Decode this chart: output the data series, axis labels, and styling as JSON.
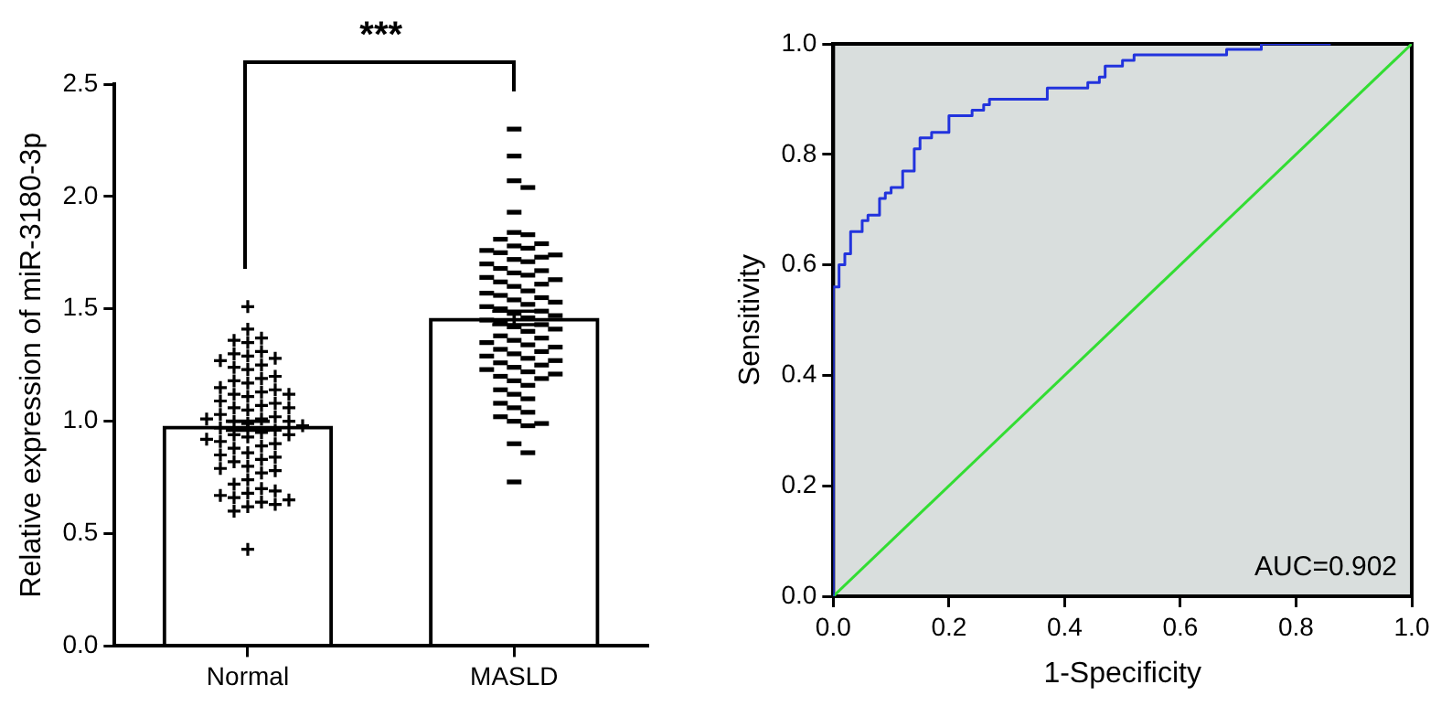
{
  "chart_data": [
    {
      "type": "bar",
      "ylabel": "Relative expression of miR-3180-3p",
      "categories": [
        "Normal",
        "MASLD"
      ],
      "ylim": [
        0,
        2.5
      ],
      "yticks": [
        {
          "value": 0,
          "label": "0.0"
        },
        {
          "value": 0.5,
          "label": "0.5"
        },
        {
          "value": 1,
          "label": "1.0"
        },
        {
          "value": 1.5,
          "label": "1.5"
        },
        {
          "value": 2,
          "label": "2.0"
        },
        {
          "value": 2.5,
          "label": "2.5"
        }
      ],
      "grid": false,
      "legend": false,
      "annotations": [
        "***"
      ],
      "series": [
        {
          "type": "bar",
          "color": "#000000",
          "values": [
            0.98,
            1.46
          ],
          "errors": [
            0.02,
            0.03
          ]
        },
        {
          "type": "scatter",
          "color": "#000000",
          "marker": "cross",
          "x": [
            "Normal",
            "Normal",
            "Normal",
            "Normal",
            "Normal",
            "Normal",
            "Normal",
            "Normal",
            "Normal",
            "Normal",
            "Normal",
            "Normal",
            "Normal",
            "Normal",
            "Normal",
            "Normal",
            "Normal",
            "Normal",
            "Normal",
            "Normal",
            "Normal",
            "Normal",
            "Normal",
            "Normal",
            "Normal",
            "Normal",
            "Normal",
            "Normal",
            "Normal",
            "Normal",
            "Normal",
            "Normal",
            "Normal",
            "Normal",
            "Normal",
            "Normal",
            "Normal",
            "Normal",
            "Normal",
            "Normal",
            "Normal",
            "Normal",
            "Normal",
            "Normal",
            "Normal",
            "Normal",
            "Normal",
            "Normal",
            "Normal",
            "Normal",
            "Normal",
            "Normal",
            "Normal",
            "Normal",
            "Normal",
            "Normal",
            "Normal",
            "Normal",
            "Normal",
            "Normal",
            "Normal",
            "Normal",
            "Normal",
            "Normal",
            "Normal",
            "Normal",
            "Normal",
            "Normal",
            "Normal",
            "Normal"
          ],
          "values": [
            1.51,
            1.41,
            1.37,
            1.36,
            1.35,
            1.31,
            1.3,
            1.29,
            1.28,
            1.27,
            1.25,
            1.24,
            1.23,
            1.2,
            1.19,
            1.18,
            1.17,
            1.15,
            1.14,
            1.13,
            1.12,
            1.12,
            1.11,
            1.09,
            1.08,
            1.07,
            1.06,
            1.06,
            1.05,
            1.03,
            1.02,
            1.01,
            1.01,
            1.0,
            1.0,
            0.99,
            0.98,
            0.97,
            0.96,
            0.95,
            0.94,
            0.94,
            0.93,
            0.92,
            0.91,
            0.9,
            0.89,
            0.88,
            0.86,
            0.85,
            0.84,
            0.83,
            0.82,
            0.8,
            0.79,
            0.78,
            0.77,
            0.74,
            0.72,
            0.7,
            0.69,
            0.68,
            0.67,
            0.66,
            0.65,
            0.64,
            0.63,
            0.62,
            0.6,
            0.43
          ]
        },
        {
          "type": "scatter",
          "color": "#000000",
          "x": [
            "MASLD",
            "MASLD",
            "MASLD",
            "MASLD",
            "MASLD",
            "MASLD",
            "MASLD",
            "MASLD",
            "MASLD",
            "MASLD",
            "MASLD",
            "MASLD",
            "MASLD",
            "MASLD",
            "MASLD",
            "MASLD",
            "MASLD",
            "MASLD",
            "MASLD",
            "MASLD",
            "MASLD",
            "MASLD",
            "MASLD",
            "MASLD",
            "MASLD",
            "MASLD",
            "MASLD",
            "MASLD",
            "MASLD",
            "MASLD",
            "MASLD",
            "MASLD",
            "MASLD",
            "MASLD",
            "MASLD",
            "MASLD",
            "MASLD",
            "MASLD",
            "MASLD",
            "MASLD",
            "MASLD",
            "MASLD",
            "MASLD",
            "MASLD",
            "MASLD",
            "MASLD",
            "MASLD",
            "MASLD",
            "MASLD",
            "MASLD",
            "MASLD",
            "MASLD",
            "MASLD",
            "MASLD",
            "MASLD",
            "MASLD",
            "MASLD",
            "MASLD",
            "MASLD",
            "MASLD",
            "MASLD",
            "MASLD",
            "MASLD",
            "MASLD",
            "MASLD",
            "MASLD",
            "MASLD",
            "MASLD",
            "MASLD",
            "MASLD",
            "MASLD",
            "MASLD",
            "MASLD",
            "MASLD",
            "MASLD",
            "MASLD",
            "MASLD",
            "MASLD",
            "MASLD",
            "MASLD",
            "MASLD"
          ],
          "values": [
            2.3,
            2.18,
            2.07,
            2.04,
            1.93,
            1.84,
            1.83,
            1.81,
            1.79,
            1.78,
            1.77,
            1.76,
            1.75,
            1.74,
            1.73,
            1.72,
            1.71,
            1.7,
            1.68,
            1.67,
            1.66,
            1.65,
            1.64,
            1.63,
            1.62,
            1.61,
            1.6,
            1.58,
            1.57,
            1.56,
            1.55,
            1.54,
            1.53,
            1.52,
            1.51,
            1.5,
            1.49,
            1.48,
            1.47,
            1.46,
            1.45,
            1.44,
            1.43,
            1.42,
            1.41,
            1.4,
            1.38,
            1.37,
            1.36,
            1.35,
            1.34,
            1.33,
            1.32,
            1.31,
            1.3,
            1.29,
            1.28,
            1.27,
            1.26,
            1.25,
            1.24,
            1.23,
            1.22,
            1.21,
            1.2,
            1.19,
            1.18,
            1.16,
            1.14,
            1.12,
            1.1,
            1.08,
            1.06,
            1.04,
            1.02,
            1.0,
            0.99,
            0.98,
            0.9,
            0.86,
            0.73
          ]
        }
      ]
    },
    {
      "type": "step",
      "xlabel": "1-Specificity",
      "ylabel": "Sensitivity",
      "xlim": [
        0,
        1
      ],
      "ylim": [
        0,
        1
      ],
      "xticks": [
        {
          "value": 0,
          "label": "0.0"
        },
        {
          "value": 0.2,
          "label": "0.2"
        },
        {
          "value": 0.4,
          "label": "0.4"
        },
        {
          "value": 0.6,
          "label": "0.6"
        },
        {
          "value": 0.8,
          "label": "0.8"
        },
        {
          "value": 1,
          "label": "1.0"
        }
      ],
      "yticks": [
        {
          "value": 0,
          "label": "0.0"
        },
        {
          "value": 0.2,
          "label": "0.2"
        },
        {
          "value": 0.4,
          "label": "0.4"
        },
        {
          "value": 0.6,
          "label": "0.6"
        },
        {
          "value": 0.8,
          "label": "0.8"
        },
        {
          "value": 1,
          "label": "1.0"
        }
      ],
      "grid": false,
      "legend": false,
      "annotations": [
        "AUC=0.902"
      ],
      "series": [
        {
          "type": "step",
          "color": "#2233dd",
          "x": [
            0,
            0,
            0.01,
            0.02,
            0.03,
            0.05,
            0.06,
            0.08,
            0.09,
            0.1,
            0.11,
            0.12,
            0.14,
            0.15,
            0.17,
            0.2,
            0.24,
            0.26,
            0.27,
            0.34,
            0.37,
            0.38,
            0.44,
            0.46,
            0.47,
            0.49,
            0.5,
            0.52,
            0.68,
            0.74,
            0.86
          ],
          "values": [
            0,
            0.49,
            0.56,
            0.6,
            0.62,
            0.66,
            0.68,
            0.69,
            0.72,
            0.73,
            0.74,
            0.74,
            0.77,
            0.81,
            0.83,
            0.84,
            0.87,
            0.88,
            0.89,
            0.9,
            0.9,
            0.92,
            0.92,
            0.93,
            0.94,
            0.96,
            0.96,
            0.97,
            0.98,
            0.99,
            1.0
          ]
        },
        {
          "type": "line",
          "color": "#33dd33",
          "x": [
            0,
            1
          ],
          "values": [
            0,
            1
          ]
        }
      ]
    }
  ]
}
